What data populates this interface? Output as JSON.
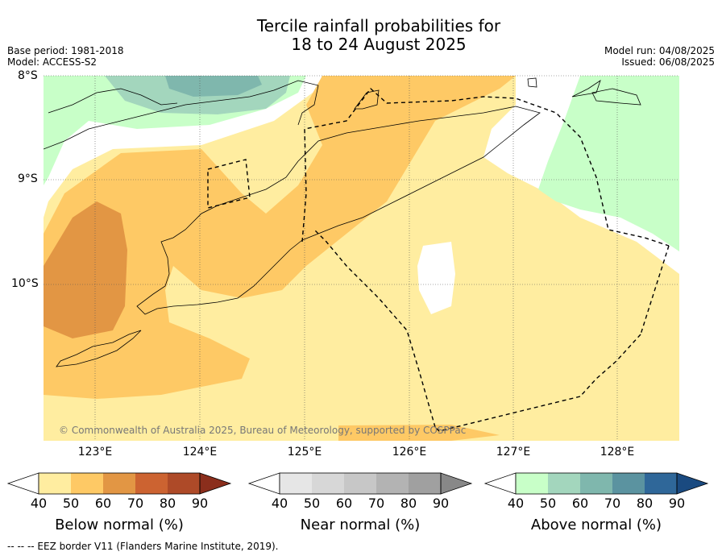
{
  "title_line1": "Tercile rainfall probabilities for",
  "title_line2": "18 to 24 August 2025",
  "base_period": "Base period: 1981-2018",
  "model": "Model: ACCESS-S2",
  "model_run": "Model run: 04/08/2025",
  "issued": "Issued: 06/08/2025",
  "lat_labels": [
    "8°S",
    "9°S",
    "10°S"
  ],
  "lon_labels": [
    "123°E",
    "124°E",
    "125°E",
    "126°E",
    "127°E",
    "128°E"
  ],
  "copyright": "© Commonwealth of Australia 2025, Bureau of Meteorology, supported by COSPPac",
  "colorbars": [
    {
      "label": "Below normal (%)",
      "ticks": [
        "40",
        "50",
        "60",
        "70",
        "80",
        "90"
      ],
      "colors": [
        "#ffeda0",
        "#fec965",
        "#e29644",
        "#cc6331",
        "#ae4a28",
        "#8b2e1c"
      ]
    },
    {
      "label": "Near normal (%)",
      "ticks": [
        "40",
        "50",
        "60",
        "70",
        "80",
        "90"
      ],
      "colors": [
        "#e6e6e6",
        "#d7d7d7",
        "#c7c7c7",
        "#b3b3b3",
        "#a0a0a0",
        "#888888"
      ]
    },
    {
      "label": "Above normal (%)",
      "ticks": [
        "40",
        "50",
        "60",
        "70",
        "80",
        "90"
      ],
      "colors": [
        "#c8ffc8",
        "#a3d6bd",
        "#7fb7ad",
        "#5b93a0",
        "#2f6799",
        "#1a4a80"
      ]
    }
  ],
  "footer": "--  --  -- EEZ border V11 (Flanders Marine Institute, 2019)."
}
